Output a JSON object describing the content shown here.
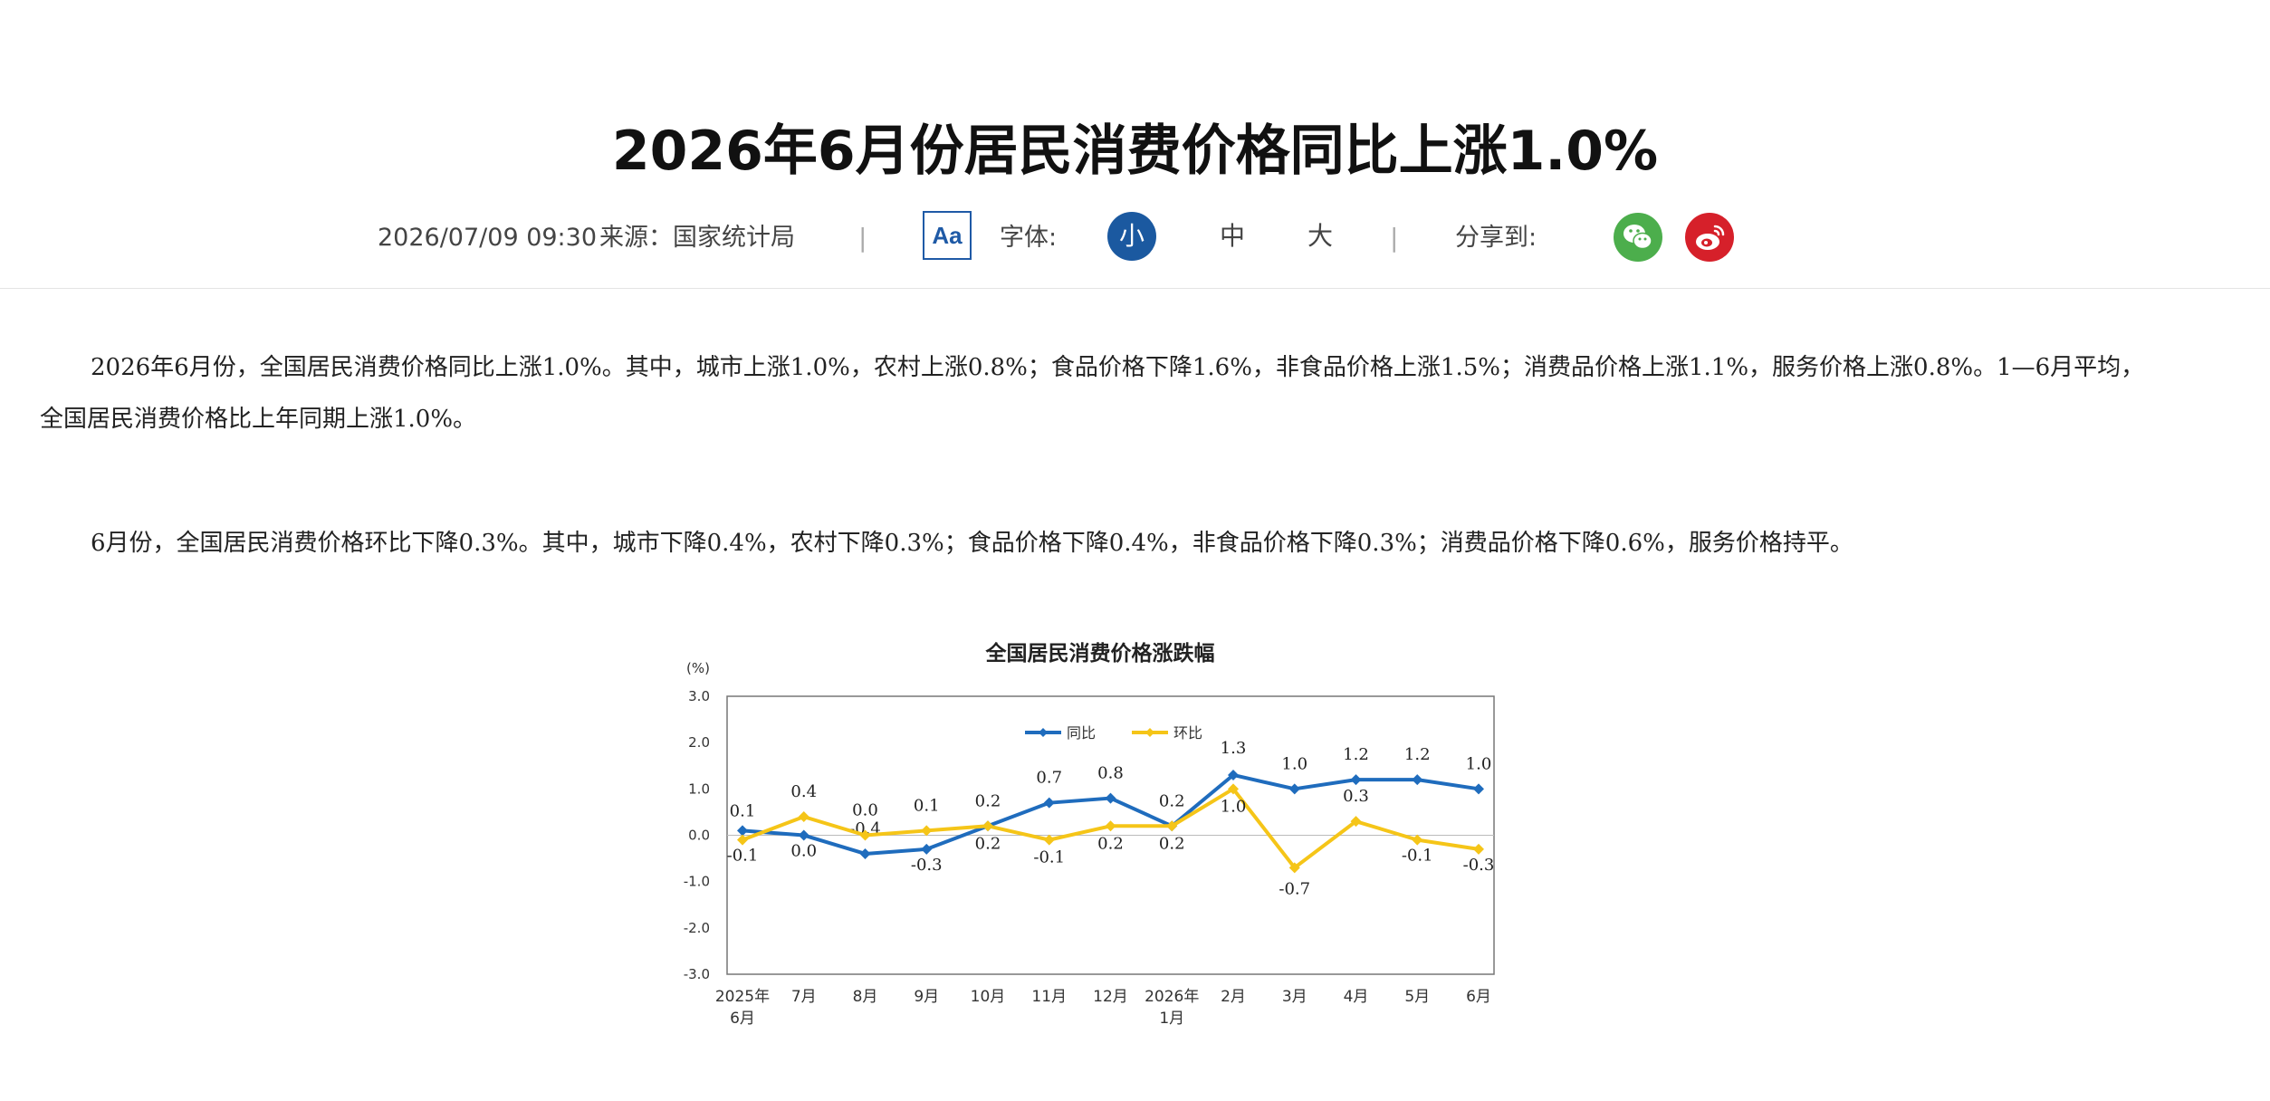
{
  "article": {
    "title": "2026年6月份居民消费价格同比上涨1.0%",
    "datetime": "2026/07/09 09:30",
    "source": "来源：国家统计局",
    "separator": "|",
    "font_icon_label": "Aa",
    "font_label": "字体:",
    "font_sizes": [
      "小",
      "中",
      "大"
    ],
    "share_label": "分享到:",
    "share_icons": [
      "wechat-icon",
      "weibo-icon"
    ],
    "paragraphs": [
      "2026年6月份，全国居民消费价格同比上涨1.0%。其中，城市上涨1.0%，农村上涨0.8%；食品价格下降1.6%，非食品价格上涨1.5%；消费品价格上涨1.1%，服务价格上涨0.8%。1—6月平均，全国居民消费价格比上年同期上涨1.0%。",
      "6月份，全国居民消费价格环比下降0.3%。其中，城市下降0.4%，农村下降0.3%；食品价格下降0.4%，非食品价格下降0.3%；消费品价格下降0.6%，服务价格持平。"
    ]
  },
  "colors": {
    "accent": "#1b59a0",
    "yoy_line": "#1f6cbd",
    "mom_line": "#f5c518",
    "wechat": "#4cae4c",
    "weibo": "#d6202a"
  },
  "chart_data": {
    "type": "line",
    "title": "全国居民消费价格涨跌幅",
    "ylabel": "(%)",
    "ylim": [
      -3.0,
      3.0
    ],
    "yticks": [
      "3.0",
      "2.0",
      "1.0",
      "0.0",
      "-1.0",
      "-2.0",
      "-3.0"
    ],
    "categories": [
      [
        "2025年",
        "6月"
      ],
      [
        "7月"
      ],
      [
        "8月"
      ],
      [
        "9月"
      ],
      [
        "10月"
      ],
      [
        "11月"
      ],
      [
        "12月"
      ],
      [
        "2026年",
        "1月"
      ],
      [
        "2月"
      ],
      [
        "3月"
      ],
      [
        "4月"
      ],
      [
        "5月"
      ],
      [
        "6月"
      ]
    ],
    "legend_position": "top-center",
    "series": [
      {
        "name": "同比",
        "values": [
          0.1,
          0.0,
          -0.4,
          -0.3,
          0.2,
          0.7,
          0.8,
          0.2,
          1.3,
          1.0,
          1.2,
          1.2,
          1.0
        ],
        "labels": [
          "0.1",
          "0.0",
          "-0.4",
          "-0.3",
          "0.2",
          "0.7",
          "0.8",
          "0.2",
          "1.3",
          "1.0",
          "1.2",
          "1.2",
          "1.0"
        ]
      },
      {
        "name": "环比",
        "values": [
          -0.1,
          0.4,
          0.0,
          0.1,
          0.2,
          -0.1,
          0.2,
          0.2,
          1.0,
          -0.7,
          0.3,
          -0.1,
          -0.3
        ],
        "labels": [
          "-0.1",
          "0.4",
          "0.0",
          "0.1",
          "0.2",
          "-0.1",
          "0.2",
          "0.2",
          "1.0",
          "-0.7",
          "0.3",
          "-0.1",
          "-0.3"
        ]
      }
    ]
  }
}
